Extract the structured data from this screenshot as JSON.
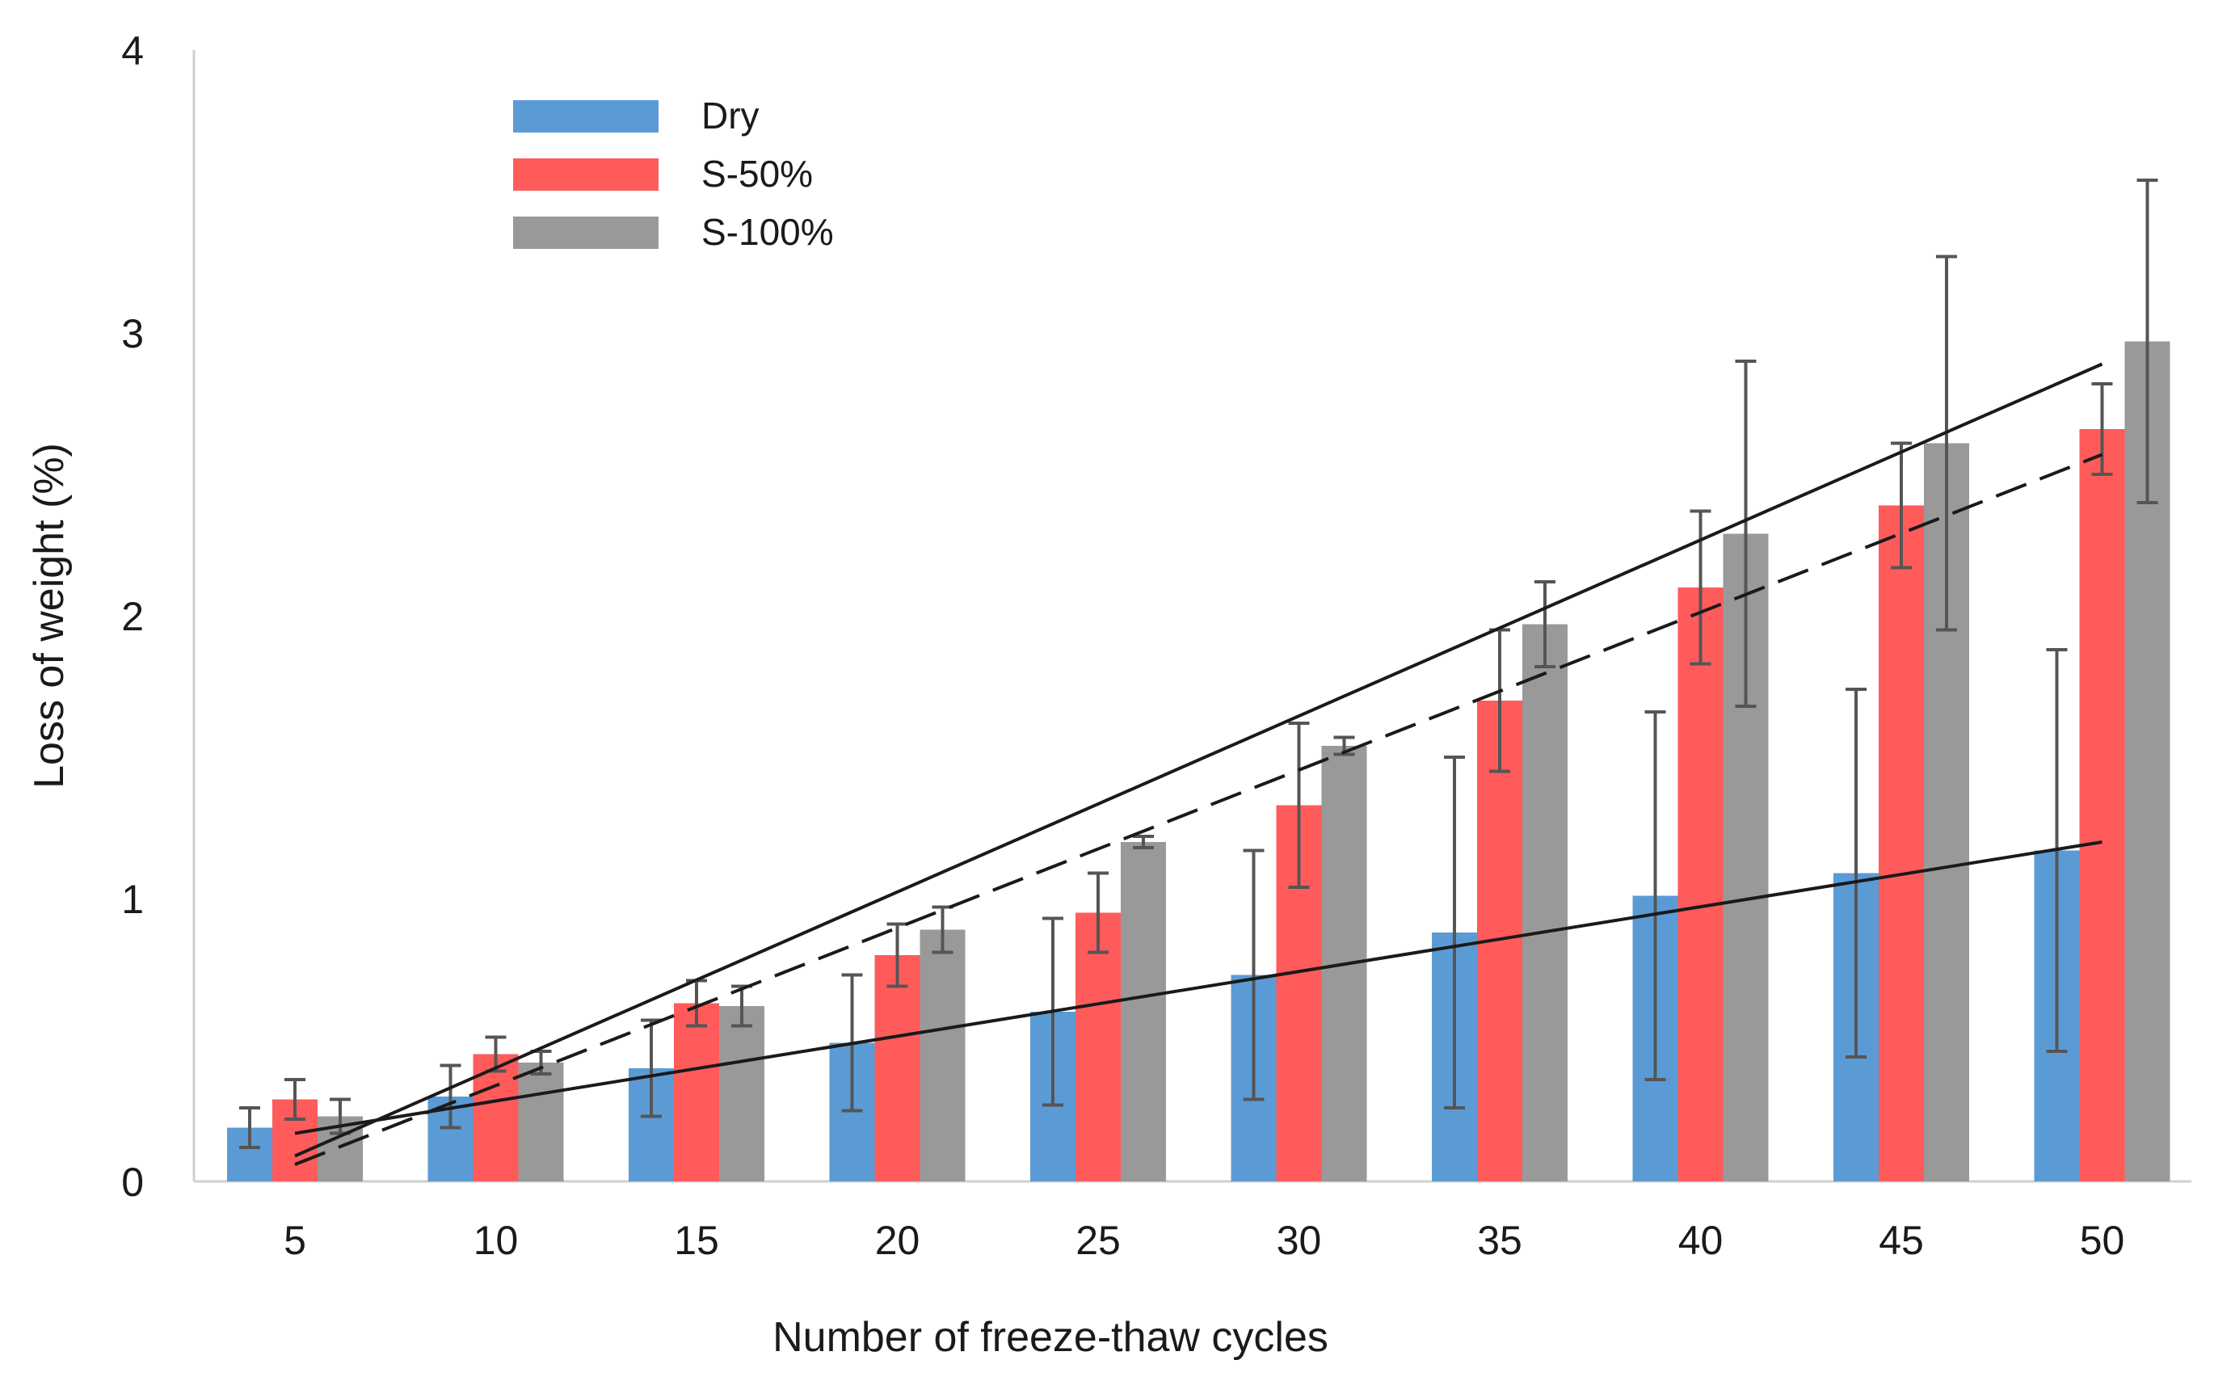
{
  "chart_data": {
    "type": "bar",
    "title": "",
    "xlabel": "Number of freeze-thaw cycles",
    "ylabel": "Loss of weight  (%)",
    "ylim": [
      0,
      4
    ],
    "yticks": [
      "0",
      "1",
      "2",
      "3",
      "4"
    ],
    "categories": [
      "5",
      "10",
      "15",
      "20",
      "25",
      "30",
      "35",
      "40",
      "45",
      "50"
    ],
    "x": [
      5,
      10,
      15,
      20,
      25,
      30,
      35,
      40,
      45,
      50
    ],
    "grid": false,
    "legend_position": "top-left",
    "series": [
      {
        "name": "Dry",
        "color": "#5b9bd5",
        "values": [
          0.19,
          0.3,
          0.4,
          0.49,
          0.6,
          0.73,
          0.88,
          1.01,
          1.09,
          1.17
        ],
        "errors": [
          0.07,
          0.11,
          0.17,
          0.24,
          0.33,
          0.44,
          0.62,
          0.65,
          0.65,
          0.71
        ]
      },
      {
        "name": "S-50%",
        "color": "#ff5b5b",
        "values": [
          0.29,
          0.45,
          0.63,
          0.8,
          0.95,
          1.33,
          1.7,
          2.1,
          2.39,
          2.66
        ],
        "errors": [
          0.07,
          0.06,
          0.08,
          0.11,
          0.14,
          0.29,
          0.25,
          0.27,
          0.22,
          0.16
        ]
      },
      {
        "name": "S-100%",
        "color": "#999999",
        "values": [
          0.23,
          0.42,
          0.62,
          0.89,
          1.2,
          1.54,
          1.97,
          2.29,
          2.61,
          2.97
        ],
        "errors": [
          0.06,
          0.04,
          0.07,
          0.08,
          0.02,
          0.03,
          0.15,
          0.61,
          0.66,
          0.57
        ]
      }
    ],
    "trendlines": [
      {
        "name": "Dry trend",
        "style": "solid",
        "x": [
          5,
          50
        ],
        "y": [
          0.17,
          1.2
        ]
      },
      {
        "name": "S-50% trend",
        "style": "dashed",
        "x": [
          5,
          50
        ],
        "y": [
          0.06,
          2.57
        ]
      },
      {
        "name": "S-100% trend",
        "style": "solid",
        "x": [
          5,
          50
        ],
        "y": [
          0.09,
          2.89
        ]
      }
    ]
  }
}
